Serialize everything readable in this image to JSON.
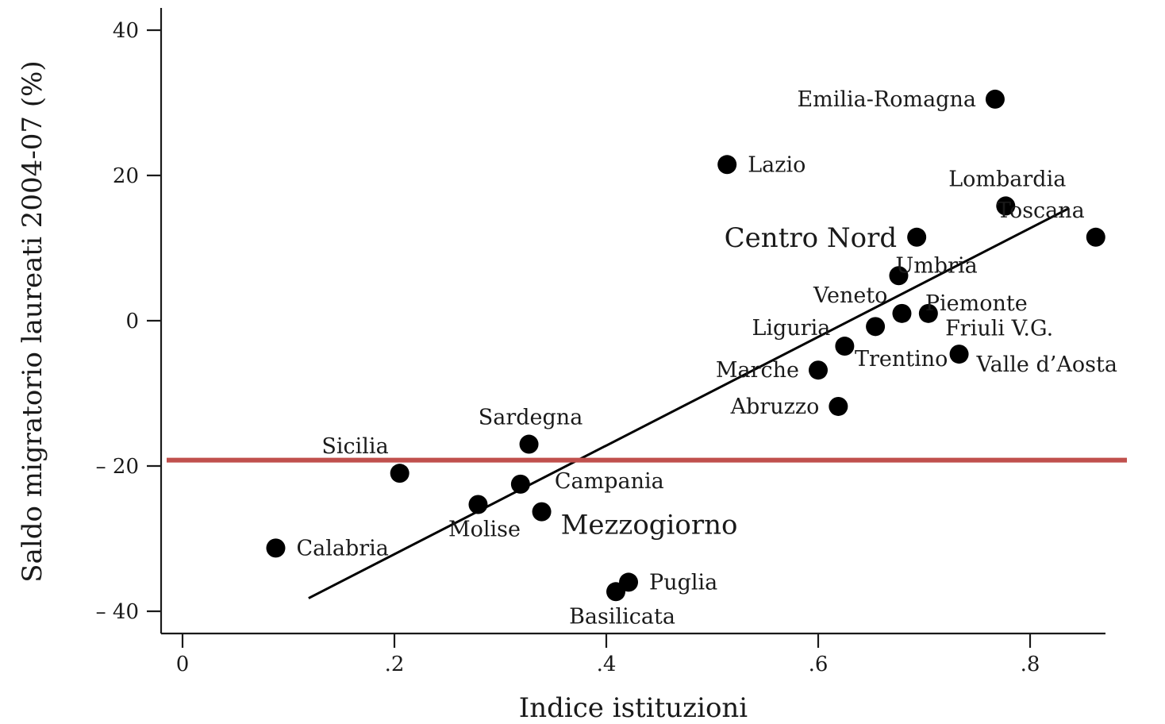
{
  "chart_data": {
    "type": "scatter",
    "xlabel": "Indice istituzioni",
    "ylabel": "Saldo migratorio laureati 2004-07 (%)",
    "xlim": [
      -0.02,
      0.875
    ],
    "ylim": [
      -43.5,
      43.5
    ],
    "x_ticks": [
      {
        "value": 0,
        "label": "0"
      },
      {
        "value": 0.2,
        "label": ".2"
      },
      {
        "value": 0.4,
        "label": ".4"
      },
      {
        "value": 0.6,
        "label": ".6"
      },
      {
        "value": 0.8,
        "label": ".8"
      }
    ],
    "y_ticks": [
      {
        "value": 40,
        "label": "40"
      },
      {
        "value": 20,
        "label": "20"
      },
      {
        "value": 0,
        "label": "0"
      },
      {
        "value": -20,
        "label": "– 20"
      },
      {
        "value": -40,
        "label": "– 40"
      }
    ],
    "points": [
      {
        "label": "Emilia-Romagna",
        "x": 0.767,
        "y": 30.5,
        "pos": "left"
      },
      {
        "label": "Lazio",
        "x": 0.514,
        "y": 21.5,
        "pos": "right"
      },
      {
        "label": "Lombardia",
        "x": 0.777,
        "y": 15.8,
        "pos": "above"
      },
      {
        "label": "Toscana",
        "x": 0.862,
        "y": 11.5,
        "pos": "above-left"
      },
      {
        "label": "Centro Nord",
        "x": 0.693,
        "y": 11.5,
        "pos": "left-big"
      },
      {
        "label": "Umbria",
        "x": 0.676,
        "y": 6.2,
        "pos": "upper-right"
      },
      {
        "label": "Veneto",
        "x": 0.679,
        "y": 1.0,
        "pos": "upper-left"
      },
      {
        "label": "Piemonte",
        "x": 0.704,
        "y": 1.0,
        "pos": "upper-right"
      },
      {
        "label": "Friuli V.G.",
        "x": 0.654,
        "y": -0.8,
        "pos": "friuli"
      },
      {
        "label": "Liguria",
        "x": 0.625,
        "y": -3.5,
        "pos": "upper-left"
      },
      {
        "label": "Valle d’Aosta",
        "x": 0.733,
        "y": -4.6,
        "pos": "right-low"
      },
      {
        "label": "Trentino",
        "x": 0.6,
        "y": -6.8,
        "pos": "trentino"
      },
      {
        "label": "Marche",
        "x": 0.6,
        "y": -6.8,
        "pos": "left"
      },
      {
        "label": "Abruzzo",
        "x": 0.619,
        "y": -11.8,
        "pos": "left"
      },
      {
        "label": "Sardegna",
        "x": 0.327,
        "y": -17.0,
        "pos": "above"
      },
      {
        "label": "Sicilia",
        "x": 0.205,
        "y": -21.0,
        "pos": "above-left"
      },
      {
        "label": "Campania",
        "x": 0.319,
        "y": -22.5,
        "pos": "campania"
      },
      {
        "label": "Molise",
        "x": 0.279,
        "y": -25.3,
        "pos": "below"
      },
      {
        "label": "Mezzogiorno",
        "x": 0.339,
        "y": -26.3,
        "pos": "right-big"
      },
      {
        "label": "Calabria",
        "x": 0.088,
        "y": -31.3,
        "pos": "right"
      },
      {
        "label": "Puglia",
        "x": 0.421,
        "y": -36.0,
        "pos": "right"
      },
      {
        "label": "Basilicata",
        "x": 0.409,
        "y": -37.3,
        "pos": "below"
      }
    ],
    "fit_line": {
      "x": [
        0.119,
        0.837
      ],
      "y": [
        -38.2,
        15.5
      ]
    },
    "reference_line": {
      "y": -19.2,
      "color": "#c0504d"
    },
    "grid": false,
    "legend": "none"
  }
}
